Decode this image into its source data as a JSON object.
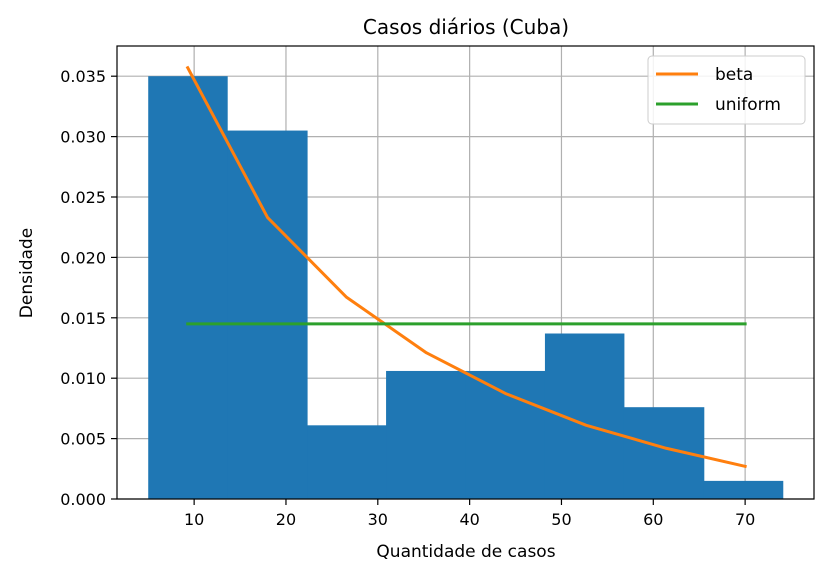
{
  "chart_data": {
    "type": "bar",
    "title": "Casos diários (Cuba)",
    "xlabel": "Quantidade de casos",
    "ylabel": "Densidade",
    "xlim": [
      1.6,
      77.5
    ],
    "ylim": [
      0,
      0.0375
    ],
    "grid": true,
    "legend_position": "top-right",
    "x_ticks": [
      10,
      20,
      30,
      40,
      50,
      60,
      70
    ],
    "x_tick_labels": [
      "10",
      "20",
      "30",
      "40",
      "50",
      "60",
      "70"
    ],
    "y_ticks": [
      0,
      0.005,
      0.01,
      0.015,
      0.02,
      0.025,
      0.03,
      0.035
    ],
    "y_tick_labels": [
      "0.000",
      "0.005",
      "0.010",
      "0.015",
      "0.020",
      "0.025",
      "0.030",
      "0.035"
    ],
    "histogram": {
      "color": "#1f77b4",
      "bin_edges": [
        5,
        13.6,
        22.3,
        30.9,
        39.6,
        48.2,
        56.8,
        65.5,
        74.1
      ],
      "densities": [
        0.035,
        0.0305,
        0.0061,
        0.0106,
        0.0106,
        0.0137,
        0.0076,
        0.0015
      ]
    },
    "series": [
      {
        "name": "beta",
        "color": "#ff7f0e",
        "x": [
          9.3,
          18.0,
          26.6,
          35.3,
          44.0,
          52.7,
          61.4,
          70.0
        ],
        "y": [
          0.0357,
          0.0233,
          0.0167,
          0.0121,
          0.0087,
          0.0061,
          0.0042,
          0.0027
        ]
      },
      {
        "name": "uniform",
        "color": "#2ca02c",
        "x": [
          9.3,
          70.0
        ],
        "y": [
          0.0145,
          0.0145
        ]
      }
    ]
  }
}
